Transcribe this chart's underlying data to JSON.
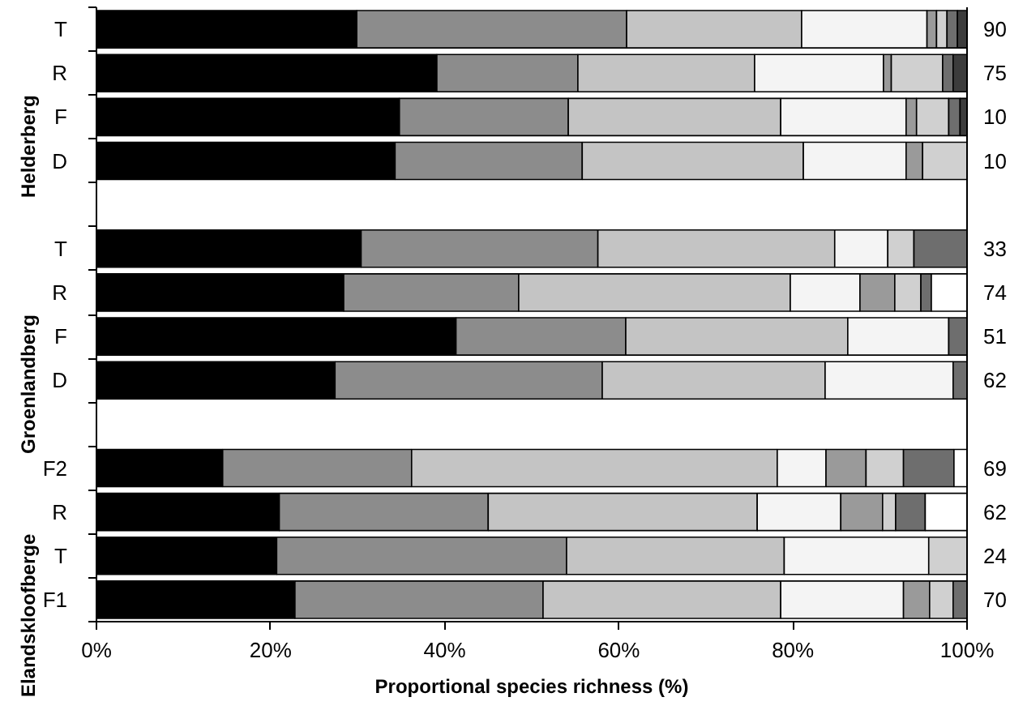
{
  "chart_data": {
    "type": "bar",
    "orientation": "horizontal",
    "stacked": true,
    "grid": false,
    "xlabel": "Proportional species richness (%)",
    "categories": [
      "T",
      "R",
      "F",
      "D",
      null,
      "T",
      "R",
      "F",
      "D",
      null,
      "F2",
      "R",
      "T",
      "F1"
    ],
    "xlim": [
      0,
      100
    ],
    "xticks": [
      {
        "value": 0,
        "label": "0%"
      },
      {
        "value": 20,
        "label": "20%"
      },
      {
        "value": 40,
        "label": "40%"
      },
      {
        "value": 60,
        "label": "60%"
      },
      {
        "value": 80,
        "label": "80%"
      },
      {
        "value": 100,
        "label": "100%"
      }
    ],
    "annotations": [
      "Helderberg",
      "Groenlandberg",
      "Elandskloofberge",
      "90",
      "75",
      "10",
      "10",
      "33",
      "74",
      "51",
      "62",
      "69",
      "62",
      "24",
      "70"
    ],
    "series": [
      {
        "color": "#000000",
        "values": [
          29.9,
          39.1,
          34.8,
          34.3,
          null,
          30.4,
          28.4,
          41.3,
          27.4,
          null,
          14.5,
          21.0,
          20.7,
          22.8
        ]
      },
      {
        "color": "#8c8c8c",
        "values": [
          31.0,
          16.2,
          19.4,
          21.5,
          null,
          27.2,
          20.1,
          19.5,
          30.7,
          null,
          21.7,
          24.0,
          33.3,
          28.5
        ]
      },
      {
        "color": "#c4c4c4",
        "values": [
          20.1,
          20.3,
          24.4,
          25.4,
          null,
          27.2,
          31.2,
          25.5,
          25.6,
          null,
          42.0,
          30.9,
          25.0,
          27.3
        ]
      },
      {
        "color": "#f4f4f4",
        "values": [
          14.4,
          14.8,
          14.4,
          11.8,
          null,
          6.1,
          8.0,
          11.6,
          14.7,
          null,
          5.6,
          9.6,
          16.6,
          14.1
        ]
      },
      {
        "color": "#9a9a9a",
        "values": [
          1.1,
          0.9,
          1.2,
          1.9,
          null,
          null,
          4.0,
          null,
          null,
          null,
          4.6,
          4.8,
          null,
          3.0
        ]
      },
      {
        "color": "#d0d0d0",
        "values": [
          1.2,
          5.9,
          3.7,
          5.1,
          null,
          3.0,
          3.0,
          null,
          null,
          null,
          4.3,
          1.5,
          4.4,
          2.7
        ]
      },
      {
        "color": "#6e6e6e",
        "values": [
          1.2,
          1.2,
          1.3,
          null,
          null,
          6.1,
          1.2,
          2.1,
          1.6,
          null,
          5.8,
          3.4,
          null,
          1.6
        ]
      },
      {
        "color": "#3c3c3c",
        "values": [
          1.1,
          1.6,
          0.8,
          null,
          null,
          null,
          null,
          null,
          null,
          null,
          null,
          null,
          null,
          null
        ]
      },
      {
        "color": "#ffffff",
        "values": [
          null,
          null,
          null,
          null,
          null,
          null,
          4.1,
          null,
          null,
          null,
          1.5,
          4.8,
          null,
          null
        ]
      }
    ]
  }
}
